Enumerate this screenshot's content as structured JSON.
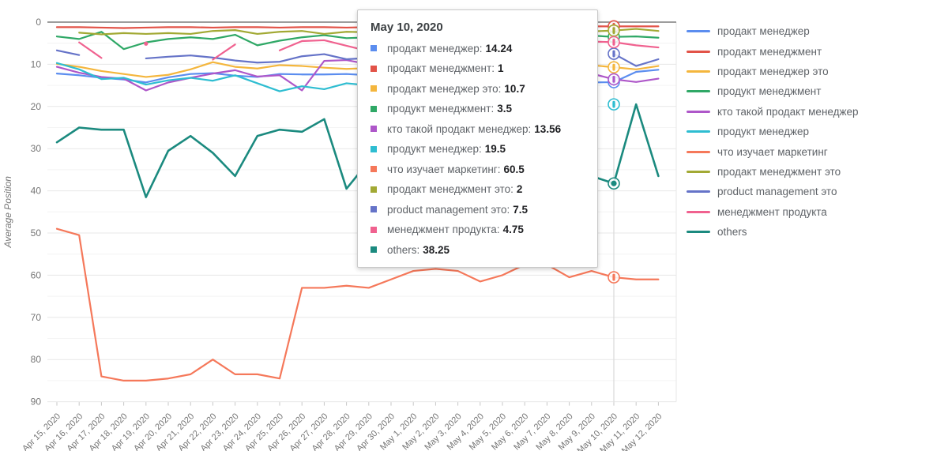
{
  "chart_data": {
    "type": "line",
    "ylabel": "Average Position",
    "y_ticks": [
      0,
      10,
      20,
      30,
      40,
      50,
      60,
      70,
      80,
      90
    ],
    "ylim": [
      0,
      90
    ],
    "y_inverted": true,
    "grid": "horizontal-major-and-minor",
    "legend_position": "right",
    "focus_index": 25,
    "focus_date": "May 10, 2020",
    "x": [
      "Apr 15, 2020",
      "Apr 16, 2020",
      "Apr 17, 2020",
      "Apr 18, 2020",
      "Apr 19, 2020",
      "Apr 20, 2020",
      "Apr 21, 2020",
      "Apr 22, 2020",
      "Apr 23, 2020",
      "Apr 24, 2020",
      "Apr 25, 2020",
      "Apr 26, 2020",
      "Apr 27, 2020",
      "Apr 28, 2020",
      "Apr 29, 2020",
      "Apr 30, 2020",
      "May 1, 2020",
      "May 2, 2020",
      "May 3, 2020",
      "May 4, 2020",
      "May 5, 2020",
      "May 6, 2020",
      "May 7, 2020",
      "May 8, 2020",
      "May 9, 2020",
      "May 10, 2020",
      "May 11, 2020",
      "May 12, 2020"
    ],
    "series": [
      {
        "name": "продакт менеджер",
        "color": "#5B8DEF",
        "marker": "bar",
        "values": [
          12.2,
          12.6,
          13.2,
          13.6,
          14.3,
          13.1,
          12.3,
          12.1,
          12.7,
          13.0,
          12.3,
          12.4,
          12.4,
          12.3,
          12.6,
          12.9,
          13.1,
          12.8,
          13.0,
          13.2,
          13.0,
          12.9,
          13.2,
          13.6,
          14.3,
          14.24,
          11.8,
          11.3
        ]
      },
      {
        "name": "продакт менеджмент",
        "color": "#E25348",
        "marker": "bar",
        "values": [
          1.2,
          1.2,
          1.3,
          1.4,
          1.3,
          1.2,
          1.2,
          1.3,
          1.2,
          1.2,
          1.3,
          1.2,
          1.2,
          1.3,
          1.2,
          1.2,
          1.2,
          1.1,
          1.2,
          1.2,
          1.1,
          1.2,
          1.1,
          1.1,
          1.0,
          1,
          1.0,
          1.0
        ]
      },
      {
        "name": "продакт менеджер это",
        "color": "#F4B63D",
        "marker": "bar",
        "values": [
          9.9,
          10.6,
          11.6,
          12.3,
          13.0,
          12.5,
          11.2,
          9.5,
          10.6,
          11.0,
          10.2,
          10.4,
          10.8,
          11.1,
          10.9,
          11.1,
          10.8,
          11.0,
          10.9,
          10.8,
          11.0,
          10.9,
          10.8,
          11.0,
          10.2,
          10.7,
          11.2,
          10.4
        ]
      },
      {
        "name": "продукт менеджмент",
        "color": "#2FA866",
        "marker": "bar",
        "values": [
          3.4,
          4.0,
          2.3,
          6.4,
          4.8,
          4.0,
          3.6,
          4.0,
          3.0,
          5.5,
          4.4,
          3.6,
          3.1,
          3.8,
          3.6,
          3.4,
          3.7,
          3.5,
          3.6,
          3.4,
          3.5,
          3.6,
          3.4,
          3.3,
          3.2,
          3.5,
          3.4,
          3.7
        ]
      },
      {
        "name": "кто такой продакт менеджер",
        "color": "#AE57C9",
        "marker": "bar",
        "values": [
          10.6,
          12.0,
          13.0,
          13.4,
          16.2,
          14.3,
          13.2,
          12.2,
          11.4,
          12.9,
          12.6,
          16.2,
          9.2,
          9.0,
          10.0,
          10.8,
          11.4,
          12.0,
          12.4,
          12.8,
          13.0,
          13.2,
          12.8,
          12.4,
          12.2,
          13.56,
          14.2,
          13.4
        ]
      },
      {
        "name": "продукт менеджер",
        "color": "#2EBDD1",
        "marker": "bar",
        "values": [
          9.7,
          11.2,
          13.5,
          13.2,
          14.8,
          13.8,
          13.2,
          13.9,
          12.6,
          14.5,
          16.4,
          15.2,
          15.9,
          14.5,
          15.0,
          15.6,
          16.2,
          15.8,
          16.6,
          17.2,
          16.8,
          17.6,
          18.2,
          18.6,
          null,
          19.5,
          null,
          null
        ]
      },
      {
        "name": "что изучает маркетинг",
        "color": "#F5785A",
        "marker": "bar",
        "values": [
          49,
          50.5,
          84,
          85,
          85,
          84.5,
          83.5,
          80,
          83.5,
          83.5,
          84.5,
          63,
          63,
          62.5,
          63,
          61,
          59,
          58.5,
          59,
          61.5,
          60,
          57.5,
          57.5,
          60.5,
          59,
          60.5,
          61,
          61
        ]
      },
      {
        "name": "продакт менеджмент это",
        "color": "#A2A934",
        "marker": "bar",
        "values": [
          null,
          2.5,
          2.9,
          2.6,
          2.8,
          2.6,
          2.8,
          2.1,
          1.9,
          2.8,
          2.3,
          2.1,
          2.8,
          2.3,
          2.4,
          2.5,
          2.3,
          2.4,
          2.5,
          2.3,
          2.2,
          2.3,
          2.2,
          2.1,
          2.2,
          2,
          1.6,
          2.1
        ]
      },
      {
        "name": "product management это",
        "color": "#6573C8",
        "marker": "bar",
        "values": [
          6.7,
          7.8,
          null,
          null,
          8.6,
          8.2,
          7.9,
          8.4,
          9.1,
          9.6,
          9.4,
          8.1,
          7.6,
          8.8,
          8.5,
          8.3,
          8.4,
          8.2,
          8.0,
          8.3,
          8.1,
          8.0,
          8.2,
          8.0,
          null,
          7.5,
          10.4,
          8.8
        ]
      },
      {
        "name": "менеджмент продукта",
        "color": "#F0618F",
        "marker": "bar",
        "values": [
          null,
          4.8,
          8.5,
          null,
          5.1,
          null,
          null,
          8.9,
          5.3,
          null,
          6.7,
          4.5,
          4.3,
          5.6,
          6.9,
          6.2,
          5.6,
          5.2,
          5.4,
          5.6,
          5.2,
          5.0,
          5.1,
          5.0,
          4.6,
          4.75,
          5.5,
          6.0
        ]
      },
      {
        "name": "others",
        "color": "#1B8A7F",
        "marker": "dot",
        "values": [
          28.5,
          25,
          25.5,
          25.5,
          41.5,
          30.5,
          27,
          31,
          36.5,
          27,
          25.5,
          26,
          23,
          39.5,
          33,
          30,
          29,
          31,
          30,
          32,
          30.5,
          29,
          31,
          35,
          36.5,
          38.25,
          19.5,
          36.5
        ]
      }
    ]
  },
  "tooltip": {
    "title": "May 10, 2020",
    "items": [
      {
        "label": "продакт менеджер",
        "value": "14.24",
        "color": "#5B8DEF"
      },
      {
        "label": "продакт менеджмент",
        "value": "1",
        "color": "#E25348"
      },
      {
        "label": "продакт менеджер это",
        "value": "10.7",
        "color": "#F4B63D"
      },
      {
        "label": "продукт менеджмент",
        "value": "3.5",
        "color": "#2FA866"
      },
      {
        "label": "кто такой продакт менеджер",
        "value": "13.56",
        "color": "#AE57C9"
      },
      {
        "label": "продукт менеджер",
        "value": "19.5",
        "color": "#2EBDD1"
      },
      {
        "label": "что изучает маркетинг",
        "value": "60.5",
        "color": "#F5785A"
      },
      {
        "label": "продакт менеджмент это",
        "value": "2",
        "color": "#A2A934"
      },
      {
        "label": "product management это",
        "value": "7.5",
        "color": "#6573C8"
      },
      {
        "label": "менеджмент продукта",
        "value": "4.75",
        "color": "#F0618F"
      },
      {
        "label": "others",
        "value": "38.25",
        "color": "#1B8A7F"
      }
    ]
  },
  "legend": {
    "items": [
      {
        "label": "продакт менеджер",
        "color": "#5B8DEF"
      },
      {
        "label": "продакт менеджмент",
        "color": "#E25348"
      },
      {
        "label": "продакт менеджер это",
        "color": "#F4B63D"
      },
      {
        "label": "продукт менеджмент",
        "color": "#2FA866"
      },
      {
        "label": "кто такой продакт менеджер",
        "color": "#AE57C9"
      },
      {
        "label": "продукт менеджер",
        "color": "#2EBDD1"
      },
      {
        "label": "что изучает маркетинг",
        "color": "#F5785A"
      },
      {
        "label": "продакт менеджмент это",
        "color": "#A2A934"
      },
      {
        "label": "product management это",
        "color": "#6573C8"
      },
      {
        "label": "менеджмент продукта",
        "color": "#F0618F"
      },
      {
        "label": "others",
        "color": "#1B8A7F"
      }
    ]
  },
  "colors": {
    "grid_major": "#e7e7e7",
    "grid_minor": "#f4f4f4",
    "baseline": "#7d7d7d",
    "crosshair": "#d9d9d9",
    "axis_text": "#757575"
  }
}
